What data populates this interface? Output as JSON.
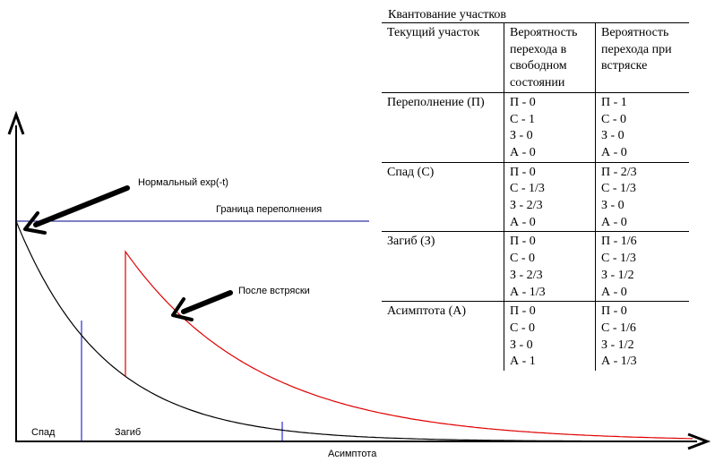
{
  "diagram": {
    "labels": {
      "normal_exp": "Нормальный exp(-t)",
      "overflow_boundary": "Граница переполнения",
      "after_shake": "После встряски",
      "decline": "Спад",
      "bend": "Загиб",
      "asymptote": "Асимптота"
    },
    "colors": {
      "axes": "#000000",
      "normal_curve": "#000000",
      "boundary_line": "#00008b",
      "section_lines": "#0000cc",
      "shaken_curve": "#e00000"
    }
  },
  "table": {
    "title": "Квантование участков",
    "headers": [
      "Текущий участок",
      "Вероятность перехода в свободном состоянии",
      "Вероятность перехода при встряске"
    ],
    "rows": [
      {
        "section": "Переполнение (П)",
        "free": [
          "П - 0",
          "С - 1",
          "З - 0",
          "А - 0"
        ],
        "shake": [
          "П - 1",
          "С - 0",
          "З - 0",
          "А - 0"
        ]
      },
      {
        "section": "Спад (С)",
        "free": [
          "П - 0",
          "С - 1/3",
          "З - 2/3",
          "А - 0"
        ],
        "shake": [
          "П - 2/3",
          "С - 1/3",
          "З - 0",
          "А - 0"
        ]
      },
      {
        "section": "Загиб (З)",
        "free": [
          "П - 0",
          "С - 0",
          "З - 2/3",
          "А - 1/3"
        ],
        "shake": [
          "П - 1/6",
          "С - 1/3",
          "З - 1/2",
          "А - 0"
        ]
      },
      {
        "section": "Асимптота (А)",
        "free": [
          "П - 0",
          "С - 0",
          "З - 0",
          "А - 1"
        ],
        "shake": [
          "П - 0",
          "С - 1/6",
          "З - 1/2",
          "А - 1/3"
        ]
      }
    ]
  }
}
